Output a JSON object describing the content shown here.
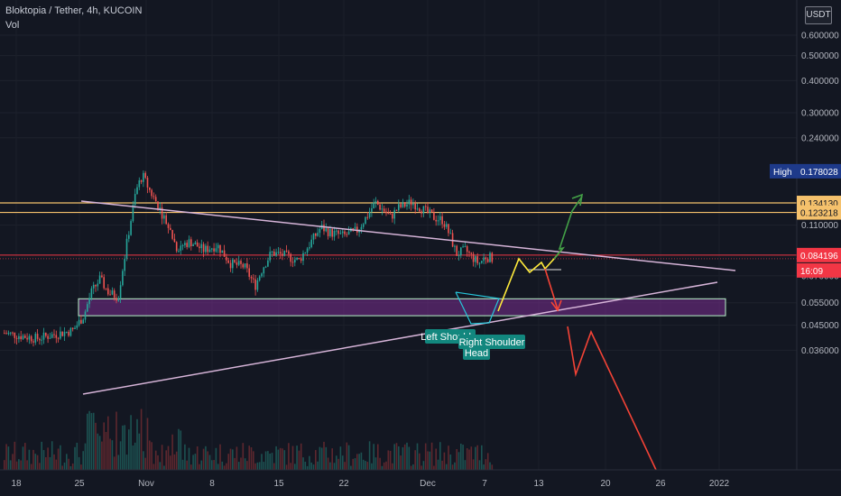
{
  "header": {
    "title": "Bloktopia / Tether, 4h, KUCOIN",
    "indicator": "Vol"
  },
  "currency_button": "USDT",
  "colors": {
    "background": "#131722",
    "up": "#26a69a",
    "down": "#ef5350",
    "trendline": "#d6b4d8",
    "level": "#f5c16c",
    "current": "#f23645",
    "zone": "#7a2e8f",
    "zone_border": "#b9f6ca",
    "bull_path": "#ffeb3b",
    "bull_arrow": "#43a047",
    "bear_arrow": "#f44336",
    "pattern": "#26c6da",
    "high_tag": "#1e3a8a"
  },
  "chart_data": {
    "type": "candlestick",
    "symbol": "Bloktopia / Tether",
    "interval": "4h",
    "exchange": "KUCOIN",
    "y_scale": "log",
    "ylim": [
      0.03,
      0.7
    ],
    "y_ticks": [
      "0.600000",
      "0.500000",
      "0.400000",
      "0.300000",
      "0.240000",
      "0.110000",
      "0.070000",
      "0.055000",
      "0.045000",
      "0.036000"
    ],
    "x_ticks": [
      "18",
      "25",
      "Nov",
      "8",
      "15",
      "22",
      "Dec",
      "7",
      "13",
      "20",
      "26",
      "2022"
    ],
    "price_tags": [
      {
        "label": "High",
        "value": "0.178028"
      },
      {
        "value": "0.134130"
      },
      {
        "value": "0.123218"
      },
      {
        "value": "0.084196"
      },
      {
        "value": "16:09"
      }
    ],
    "horizontal_levels": [
      0.13413,
      0.123218,
      0.084196
    ],
    "zone": {
      "low": 0.049,
      "high": 0.057
    },
    "annotations": [
      "Left Shoulder",
      "Head",
      "Right Shoulder"
    ]
  }
}
